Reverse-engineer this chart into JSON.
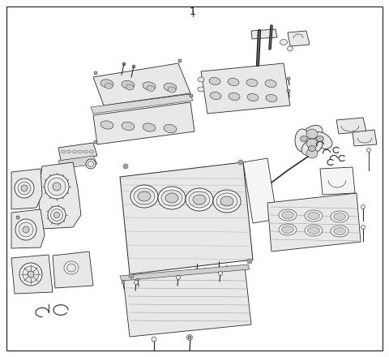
{
  "title": "1",
  "background_color": "#ffffff",
  "border_color": "#1a1a1a",
  "line_color": "#2a2a2a",
  "fill_light": "#f5f5f5",
  "fill_mid": "#e8e8e8",
  "fill_dark": "#d0d0d0",
  "fig_width": 4.8,
  "fig_height": 4.4,
  "dpi": 100,
  "title_fontsize": 9,
  "border_lw": 0.8,
  "part_lw": 0.6,
  "detail_lw": 0.4
}
